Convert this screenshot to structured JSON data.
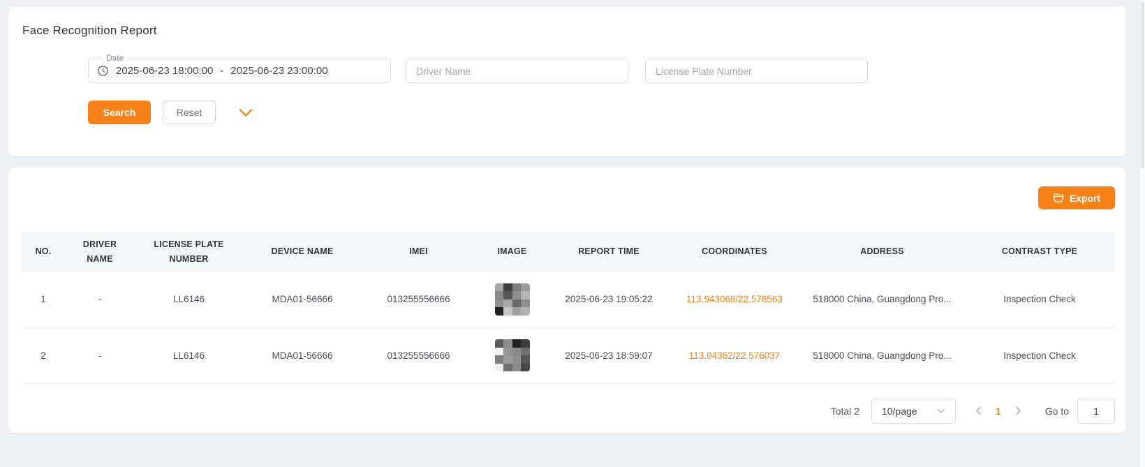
{
  "page": {
    "background": "#edeff3",
    "accent_color": "#f8821a"
  },
  "filter_card": {
    "title": "Face Recognition Report",
    "date_field": {
      "label": "Date",
      "start": "2025-06-23 18:00:00",
      "separator": "-",
      "end": "2025-06-23 23:00:00",
      "icon": "clock-icon"
    },
    "driver_name_placeholder": "Driver Name",
    "license_plate_placeholder": "License Plate Number",
    "search_label": "Search",
    "reset_label": "Reset"
  },
  "table_card": {
    "export_label": "Export",
    "columns": [
      {
        "id": "no",
        "label": "NO."
      },
      {
        "id": "driver_name",
        "label": "DRIVER NAME"
      },
      {
        "id": "license_plate",
        "label": "LICENSE PLATE NUMBER"
      },
      {
        "id": "device_name",
        "label": "DEVICE NAME"
      },
      {
        "id": "imei",
        "label": "IMEI"
      },
      {
        "id": "image",
        "label": "IMAGE"
      },
      {
        "id": "report_time",
        "label": "REPORT TIME"
      },
      {
        "id": "coordinates",
        "label": "COORDINATES"
      },
      {
        "id": "address",
        "label": "ADDRESS"
      },
      {
        "id": "contrast_type",
        "label": "CONTRAST TYPE"
      }
    ],
    "rows": [
      {
        "no": "1",
        "driver_name": "-",
        "license_plate": "LL6146",
        "device_name": "MDA01-56666",
        "imei": "013255556666",
        "image_pixels": [
          [
            "#a6a6a6",
            "#3f3f3f",
            "#7e7e7e",
            "#9c9c9c"
          ],
          [
            "#8a8a8a",
            "#565656",
            "#8f8f8f",
            "#b5b5b5"
          ],
          [
            "#909090",
            "#a8a8a8",
            "#6a6a6a",
            "#8d8d8d"
          ],
          [
            "#222222",
            "#c6c6c6",
            "#9f9f9f",
            "#b0b0b0"
          ]
        ],
        "report_time": "2025-06-23 19:05:22",
        "coordinates": "113.943068/22.576563",
        "address": "518000 China, Guangdong Pro...",
        "contrast_type": "Inspection Check"
      },
      {
        "no": "2",
        "driver_name": "-",
        "license_plate": "LL6146",
        "device_name": "MDA01-56666",
        "imei": "013255556666",
        "image_pixels": [
          [
            "#5a5a5a",
            "#8f8f8f",
            "#232323",
            "#3c3c3c"
          ],
          [
            "#f2f2f2",
            "#949494",
            "#8a8a8a",
            "#707070"
          ],
          [
            "#7d7d7d",
            "#9b9b9b",
            "#8f8f8f",
            "#585858"
          ],
          [
            "#ededed",
            "#6f6f6f",
            "#8a8a8a",
            "#454545"
          ]
        ],
        "report_time": "2025-06-23 18:59:07",
        "coordinates": "113.94362/22.576037",
        "address": "518000 China, Guangdong Pro...",
        "contrast_type": "Inspection Check"
      }
    ],
    "pagination": {
      "total_label": "Total 2",
      "page_size": "10/page",
      "current_page": "1",
      "goto_label": "Go to",
      "goto_value": "1"
    }
  }
}
